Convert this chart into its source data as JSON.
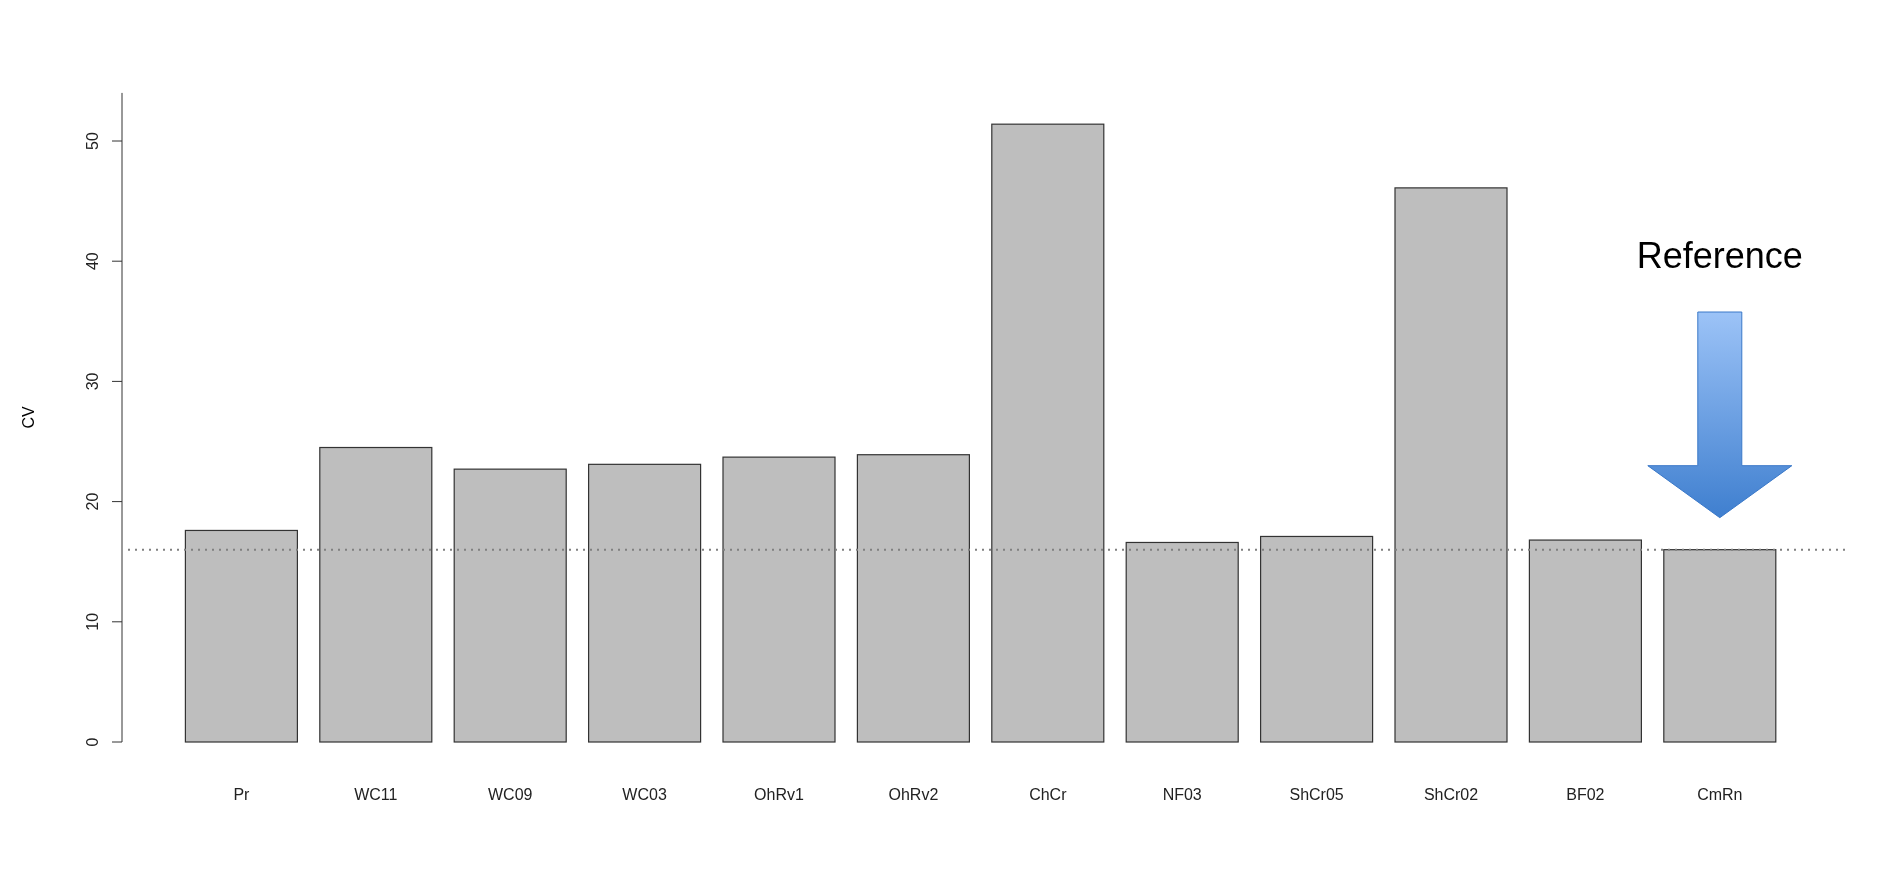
{
  "chart_data": {
    "type": "bar",
    "ylabel": "CV",
    "categories": [
      "Pr",
      "WC11",
      "WC09",
      "WC03",
      "OhRv1",
      "OhRv2",
      "ChCr",
      "NF03",
      "ShCr05",
      "ShCr02",
      "BF02",
      "CmRn"
    ],
    "values": [
      17.6,
      24.5,
      22.7,
      23.1,
      23.7,
      23.9,
      51.4,
      16.6,
      17.1,
      46.1,
      16.8,
      16.0
    ],
    "color": "#bebebe",
    "ylim": [
      0,
      54
    ],
    "yticks": [
      0,
      10,
      20,
      30,
      40,
      50
    ],
    "ref_lines": [
      {
        "axis": "y",
        "value": 16.0,
        "line_style": "dotted",
        "color": "#808080"
      }
    ],
    "annotations": [
      "Reference"
    ]
  }
}
